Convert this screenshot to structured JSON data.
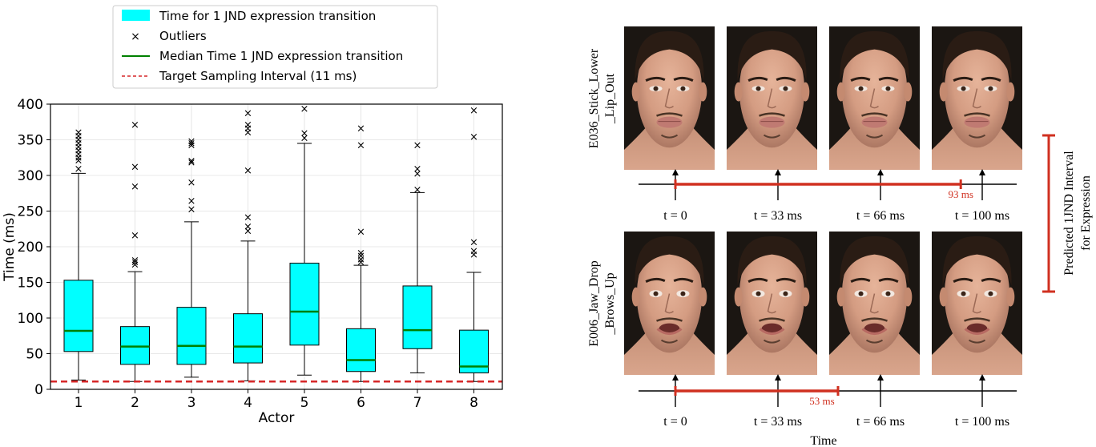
{
  "colors": {
    "box_fill": "#00ffff",
    "median": "#008000",
    "target": "#d62728",
    "interval": "#d03020",
    "frame": "#000000"
  },
  "chart_data": [
    {
      "type": "box",
      "xlabel": "Actor",
      "ylabel": "Time (ms)",
      "ylim": [
        0,
        400
      ],
      "yticks": [
        0,
        50,
        100,
        150,
        200,
        250,
        300,
        350,
        400
      ],
      "grid": true,
      "legend_placement": "top",
      "legend": [
        {
          "label": "Time for 1 JND expression transition",
          "kind": "patch"
        },
        {
          "label": "Outliers",
          "kind": "marker"
        },
        {
          "label": "Median Time 1 JND expression transition",
          "kind": "line"
        },
        {
          "label": "Target Sampling Interval (11 ms)",
          "kind": "dashed"
        }
      ],
      "target_line": 11,
      "categories": [
        "1",
        "2",
        "3",
        "4",
        "5",
        "6",
        "7",
        "8"
      ],
      "boxes": [
        {
          "whisker_low": 13,
          "q1": 53,
          "median": 82,
          "q3": 153,
          "whisker_high": 303,
          "outliers": [
            309,
            321,
            325,
            330,
            335,
            340,
            345,
            350,
            355,
            360
          ]
        },
        {
          "whisker_low": 11,
          "q1": 35,
          "median": 60,
          "q3": 88,
          "whisker_high": 165,
          "outliers": [
            175,
            178,
            181,
            216,
            284,
            312,
            371
          ]
        },
        {
          "whisker_low": 17,
          "q1": 35,
          "median": 61,
          "q3": 115,
          "whisker_high": 235,
          "outliers": [
            252,
            264,
            290,
            318,
            320,
            342,
            345,
            348
          ]
        },
        {
          "whisker_low": 12,
          "q1": 37,
          "median": 60,
          "q3": 106,
          "whisker_high": 208,
          "outliers": [
            222,
            228,
            241,
            307,
            360,
            366,
            371,
            387
          ]
        },
        {
          "whisker_low": 20,
          "q1": 62,
          "median": 109,
          "q3": 177,
          "whisker_high": 345,
          "outliers": [
            352,
            359,
            393
          ]
        },
        {
          "whisker_low": 11,
          "q1": 25,
          "median": 41,
          "q3": 85,
          "whisker_high": 174,
          "outliers": [
            178,
            182,
            187,
            191,
            221,
            342,
            366
          ]
        },
        {
          "whisker_low": 23,
          "q1": 57,
          "median": 83,
          "q3": 145,
          "whisker_high": 276,
          "outliers": [
            280,
            302,
            309,
            342
          ]
        },
        {
          "whisker_low": 11,
          "q1": 23,
          "median": 32,
          "q3": 83,
          "whisker_high": 164,
          "outliers": [
            189,
            194,
            206,
            354,
            391
          ]
        }
      ]
    },
    {
      "type": "timeline",
      "xlabel": "Time",
      "side_label_line1": "Predicted 1JND Interval",
      "side_label_line2": "for Expression",
      "tick_labels": [
        "t = 0",
        "t = 33 ms",
        "t = 66 ms",
        "t = 100 ms"
      ],
      "rows": [
        {
          "name_line1": "E036_Stick_Lower",
          "name_line2": "_Lip_Out",
          "interval_ms": 93,
          "interval_label": "93 ms",
          "expression": "lip-out"
        },
        {
          "name_line1": "E006_Jaw_Drop",
          "name_line2": "_Brows_Up",
          "interval_ms": 53,
          "interval_label": "53 ms",
          "expression": "jaw-drop"
        }
      ]
    }
  ]
}
